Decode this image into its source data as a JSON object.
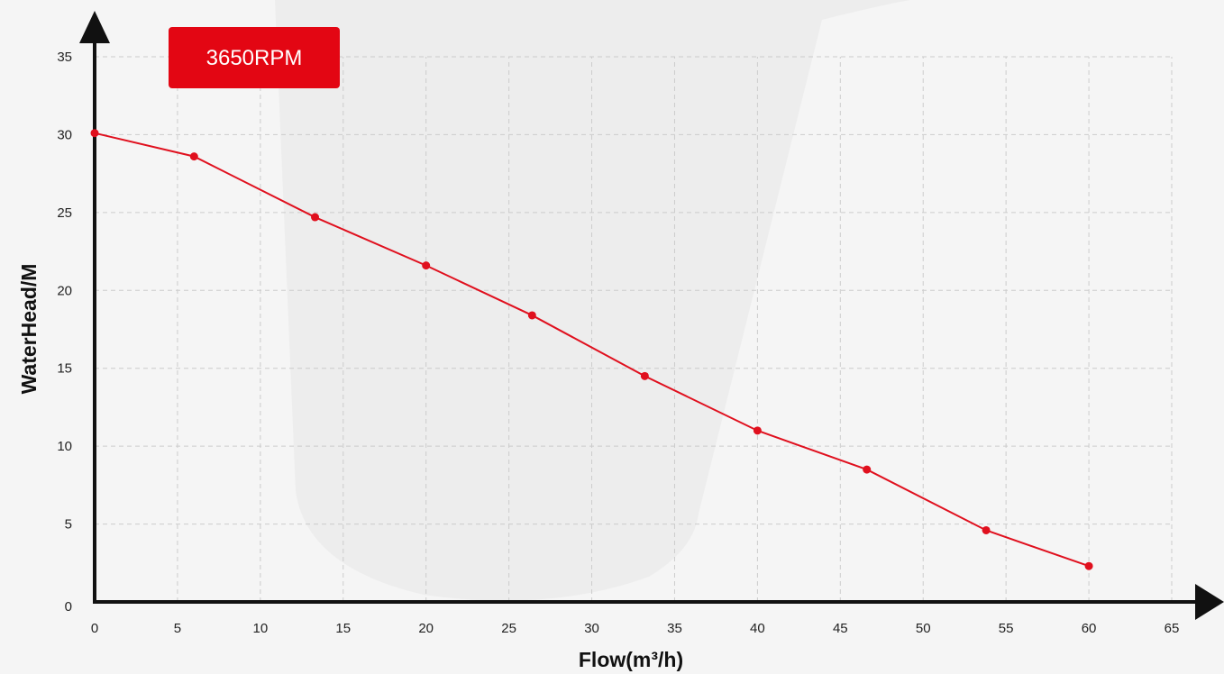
{
  "chart_data": {
    "type": "line",
    "badge": "3650RPM",
    "xlabel": "Flow(m³/h)",
    "ylabel": "WaterHead/M",
    "xlim": [
      0,
      65
    ],
    "ylim": [
      0,
      35
    ],
    "x_ticks": [
      0,
      5,
      10,
      15,
      20,
      25,
      30,
      35,
      40,
      45,
      50,
      55,
      60,
      65
    ],
    "y_ticks": [
      0,
      5,
      10,
      15,
      20,
      25,
      30,
      35
    ],
    "grid": true,
    "series": [
      {
        "x": [
          0,
          6,
          13.3,
          20,
          26.4,
          33.2,
          40,
          46.6,
          53.8,
          60
        ],
        "y": [
          30.1,
          28.6,
          24.7,
          21.6,
          18.4,
          14.5,
          11.0,
          8.5,
          4.6,
          2.3
        ]
      }
    ],
    "colors": {
      "line": "#e0101e",
      "badge": "#e30613",
      "axis": "#111111",
      "grid": "#cccccc"
    }
  }
}
